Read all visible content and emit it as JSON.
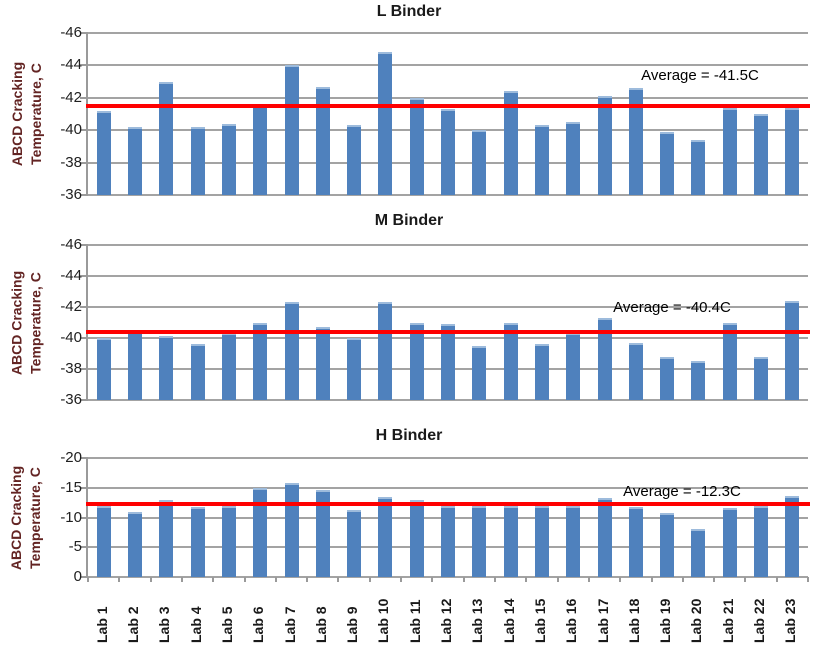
{
  "axis": {
    "y_title_line1": "ABCD Cracking",
    "y_title_line2": "Temperature, C"
  },
  "categories": [
    "Lab 1",
    "Lab 2",
    "Lab 3",
    "Lab 4",
    "Lab 5",
    "Lab 6",
    "Lab 7",
    "Lab 8",
    "Lab 9",
    "Lab 10",
    "Lab 11",
    "Lab 12",
    "Lab 13",
    "Lab 14",
    "Lab 15",
    "Lab 16",
    "Lab 17",
    "Lab 18",
    "Lab 19",
    "Lab 20",
    "Lab 21",
    "Lab 22",
    "Lab 23"
  ],
  "colors": {
    "bar": "#4F81BD",
    "bar_highlight": "#9DBBDC",
    "average_line": "#FF0000",
    "gridline": "#A3A3A3",
    "y_axis_title": "#632423"
  },
  "chart_data": [
    {
      "type": "bar",
      "title": "L Binder",
      "ylabel": "ABCD Cracking Temperature, C",
      "y_axis_inverted": true,
      "ylim": [
        -46,
        -36
      ],
      "yticks": [
        -46,
        -44,
        -42,
        -40,
        -38,
        -36
      ],
      "grid": true,
      "legend": false,
      "categories": [
        "Lab 1",
        "Lab 2",
        "Lab 3",
        "Lab 4",
        "Lab 5",
        "Lab 6",
        "Lab 7",
        "Lab 8",
        "Lab 9",
        "Lab 10",
        "Lab 11",
        "Lab 12",
        "Lab 13",
        "Lab 14",
        "Lab 15",
        "Lab 16",
        "Lab 17",
        "Lab 18",
        "Lab 19",
        "Lab 20",
        "Lab 21",
        "Lab 22",
        "Lab 23"
      ],
      "values": [
        -41.2,
        -40.2,
        -43.0,
        -40.2,
        -40.4,
        -41.6,
        -44.0,
        -42.7,
        -40.3,
        -44.8,
        -42.0,
        -41.3,
        -40.0,
        -42.4,
        -40.3,
        -40.5,
        -42.1,
        -42.6,
        -39.9,
        -39.4,
        -41.4,
        -41.0,
        -41.4
      ],
      "average_value": -41.5,
      "average_label": "Average = -41.5C"
    },
    {
      "type": "bar",
      "title": "M Binder",
      "ylabel": "ABCD Cracking Temperature, C",
      "y_axis_inverted": true,
      "ylim": [
        -46,
        -36
      ],
      "yticks": [
        -46,
        -44,
        -42,
        -40,
        -38,
        -36
      ],
      "grid": true,
      "legend": false,
      "categories": [
        "Lab 1",
        "Lab 2",
        "Lab 3",
        "Lab 4",
        "Lab 5",
        "Lab 6",
        "Lab 7",
        "Lab 8",
        "Lab 9",
        "Lab 10",
        "Lab 11",
        "Lab 12",
        "Lab 13",
        "Lab 14",
        "Lab 15",
        "Lab 16",
        "Lab 17",
        "Lab 18",
        "Lab 19",
        "Lab 20",
        "Lab 21",
        "Lab 22",
        "Lab 23"
      ],
      "values": [
        -40.0,
        -40.5,
        -40.1,
        -39.6,
        -40.3,
        -41.0,
        -42.3,
        -40.7,
        -40.0,
        -42.3,
        -41.0,
        -40.9,
        -39.5,
        -41.0,
        -39.6,
        -40.3,
        -41.3,
        -39.7,
        -38.8,
        -38.5,
        -41.0,
        -38.8,
        -42.4
      ],
      "average_value": -40.4,
      "average_label": "Average = -40.4C"
    },
    {
      "type": "bar",
      "title": "H Binder",
      "ylabel": "ABCD Cracking Temperature, C",
      "y_axis_inverted": true,
      "ylim": [
        -20,
        0
      ],
      "yticks": [
        -20,
        -15,
        -10,
        -5,
        0
      ],
      "grid": true,
      "legend": false,
      "categories": [
        "Lab 1",
        "Lab 2",
        "Lab 3",
        "Lab 4",
        "Lab 5",
        "Lab 6",
        "Lab 7",
        "Lab 8",
        "Lab 9",
        "Lab 10",
        "Lab 11",
        "Lab 12",
        "Lab 13",
        "Lab 14",
        "Lab 15",
        "Lab 16",
        "Lab 17",
        "Lab 18",
        "Lab 19",
        "Lab 20",
        "Lab 21",
        "Lab 22",
        "Lab 23"
      ],
      "values": [
        -12.0,
        -11.0,
        -13.0,
        -11.8,
        -12.0,
        -14.9,
        -15.8,
        -14.7,
        -11.3,
        -13.4,
        -13.0,
        -12.0,
        -12.0,
        -11.9,
        -12.0,
        -12.0,
        -13.3,
        -11.7,
        -10.7,
        -8.0,
        -11.6,
        -12.0,
        -13.7
      ],
      "average_value": -12.3,
      "average_label": "Average = -12.3C"
    }
  ]
}
